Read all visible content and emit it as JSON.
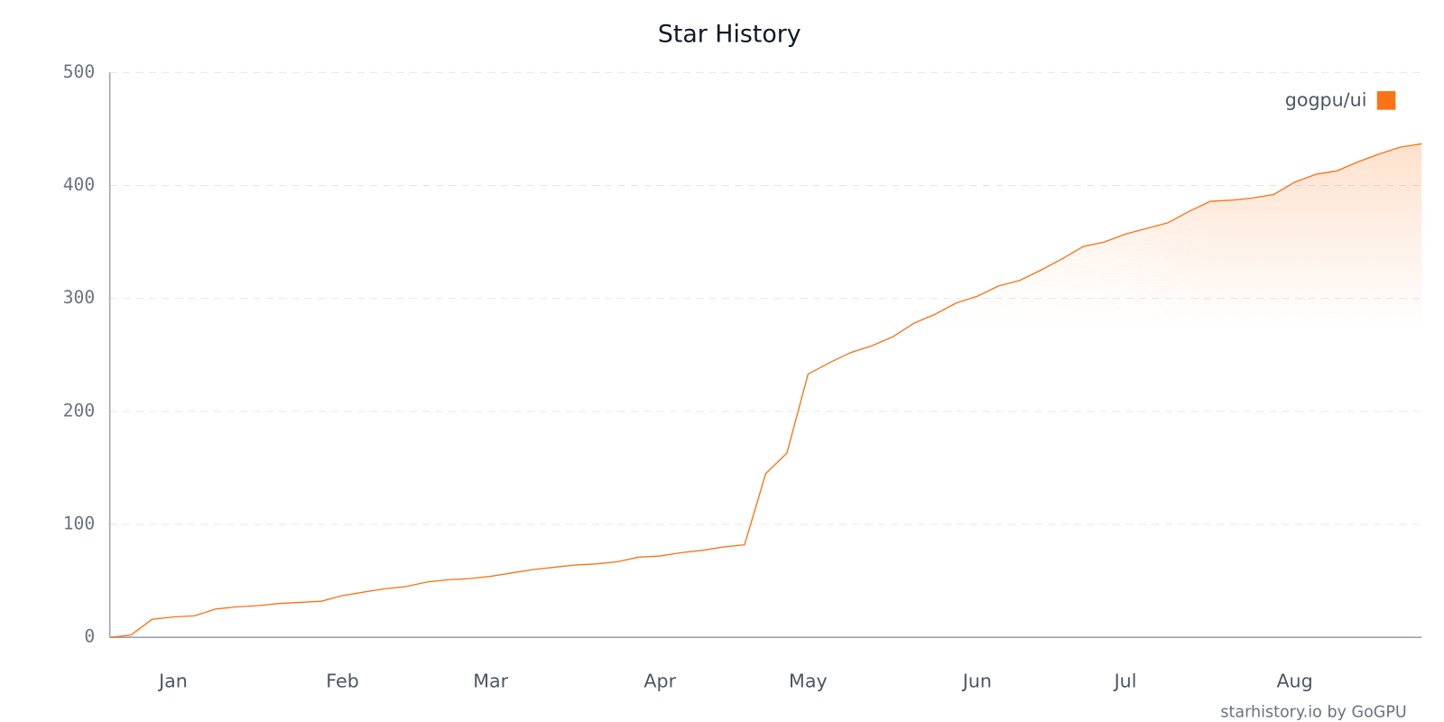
{
  "chart_data": {
    "type": "line",
    "title": "Star History",
    "source": "starhistory.io by GoGPU",
    "categories": [
      null,
      null,
      null,
      "Jan",
      null,
      null,
      null,
      null,
      null,
      null,
      null,
      "Feb",
      null,
      null,
      null,
      null,
      null,
      null,
      "Mar",
      null,
      null,
      null,
      null,
      null,
      null,
      null,
      "Apr",
      null,
      null,
      null,
      null,
      null,
      null,
      "May",
      null,
      null,
      null,
      null,
      null,
      null,
      null,
      "Jun",
      null,
      null,
      null,
      null,
      null,
      null,
      "Jul",
      null,
      null,
      null,
      null,
      null,
      null,
      null,
      "Aug",
      null,
      null,
      null,
      null,
      null,
      null
    ],
    "series": [
      {
        "name": "gogpu/ui",
        "color": "#f97316",
        "values": [
          0,
          2,
          16,
          18,
          19,
          25,
          27,
          28,
          30,
          31,
          32,
          37,
          40,
          43,
          45,
          49,
          51,
          52,
          54,
          57,
          60,
          62,
          64,
          65,
          67,
          71,
          72,
          75,
          77,
          80,
          82,
          145,
          163,
          233,
          243,
          252,
          258,
          266,
          278,
          286,
          296,
          302,
          311,
          316,
          325,
          335,
          346,
          350,
          357,
          362,
          367,
          377,
          386,
          387,
          389,
          392,
          403,
          410,
          413,
          421,
          428,
          434,
          437
        ]
      }
    ],
    "ylim": [
      0,
      500
    ],
    "yticks": [
      0,
      100,
      200,
      300,
      400,
      500
    ],
    "grid": true,
    "legend": "top-right"
  }
}
